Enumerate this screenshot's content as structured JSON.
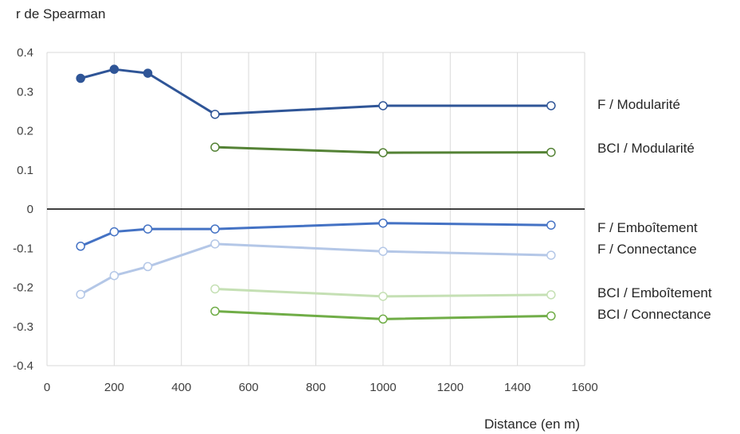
{
  "chart_data": {
    "type": "line",
    "title": "",
    "ylabel": "r de Spearman",
    "xlabel": "Distance (en m)",
    "xlim": [
      0,
      1600
    ],
    "ylim": [
      -0.4,
      0.4
    ],
    "xticks": [
      0,
      200,
      400,
      600,
      800,
      1000,
      1200,
      1400,
      1600
    ],
    "yticks": [
      -0.4,
      -0.3,
      -0.2,
      -0.1,
      0,
      0.1,
      0.2,
      0.3,
      0.4
    ],
    "ytick_labels": [
      "-0.4",
      "-0.3",
      "-0.2",
      "-0.1",
      "0",
      "0.1",
      "0.2",
      "0.3",
      "0.4"
    ],
    "grid": "vertical",
    "zero_line": true,
    "legend_placement": "right, labels next to series ends",
    "series": [
      {
        "name": "F / Modularité",
        "color": "#2f5597",
        "x": [
          100,
          200,
          300,
          500,
          1000,
          1500
        ],
        "y": [
          0.334,
          0.357,
          0.347,
          0.242,
          0.264,
          0.264
        ],
        "filled": [
          true,
          true,
          true,
          false,
          false,
          false
        ]
      },
      {
        "name": "BCI / Modularité",
        "color": "#548235",
        "x": [
          500,
          1000,
          1500
        ],
        "y": [
          0.158,
          0.144,
          0.145
        ],
        "filled": [
          false,
          false,
          false
        ]
      },
      {
        "name": "F / Emboîtement",
        "color": "#4472c4",
        "x": [
          100,
          200,
          300,
          500,
          1000,
          1500
        ],
        "y": [
          -0.095,
          -0.058,
          -0.051,
          -0.051,
          -0.036,
          -0.041
        ],
        "filled": [
          false,
          false,
          false,
          false,
          false,
          false
        ]
      },
      {
        "name": "F / Connectance",
        "color": "#b4c7e7",
        "x": [
          100,
          200,
          300,
          500,
          1000,
          1500
        ],
        "y": [
          -0.218,
          -0.17,
          -0.147,
          -0.089,
          -0.108,
          -0.118
        ],
        "filled": [
          false,
          false,
          false,
          false,
          false,
          false
        ]
      },
      {
        "name": "BCI / Emboîtement",
        "color": "#c5e0b4",
        "x": [
          500,
          1000,
          1500
        ],
        "y": [
          -0.204,
          -0.223,
          -0.219
        ],
        "filled": [
          false,
          false,
          false
        ]
      },
      {
        "name": "BCI / Connectance",
        "color": "#70ad47",
        "x": [
          500,
          1000,
          1500
        ],
        "y": [
          -0.261,
          -0.281,
          -0.273
        ],
        "filled": [
          false,
          false,
          false
        ]
      }
    ]
  }
}
